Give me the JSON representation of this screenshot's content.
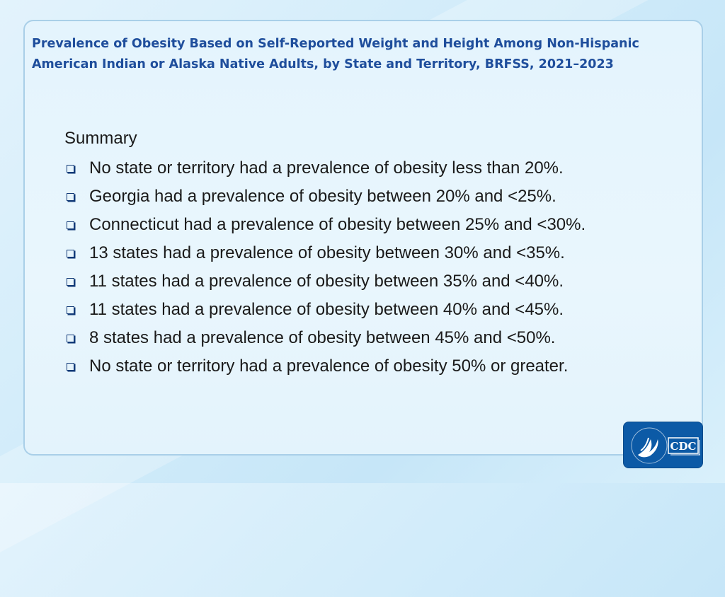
{
  "slide": {
    "title": "Prevalence of Obesity Based on Self-Reported Weight and Height Among Non-Hispanic American Indian or Alaska Native Adults, by State and Territory, BRFSS, 2021–2023",
    "summary_heading": "Summary",
    "items": [
      "No state or territory had a prevalence of obesity less than 20%.",
      "Georgia had a prevalence of obesity between 20% and <25%.",
      "Connecticut had a prevalence of obesity between 25% and <30%.",
      "13 states had a prevalence of obesity between 30% and <35%.",
      "11 states had a prevalence of obesity between 35% and <40%.",
      "11 states had a prevalence of obesity between 40% and <45%.",
      "8 states had a prevalence of obesity between 45% and <50%.",
      "No state or territory had a prevalence of obesity 50% or greater."
    ]
  },
  "logo": {
    "text": "CDC",
    "icon": "hhs-eagle-icon",
    "background_color": "#0c5aa6"
  }
}
